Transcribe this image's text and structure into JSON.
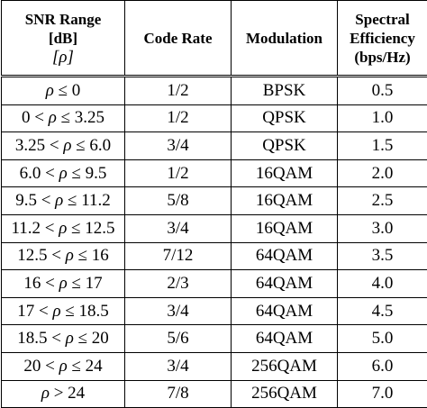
{
  "headers": {
    "snr": [
      "SNR Range",
      "[dB]",
      "[ρ]"
    ],
    "code_rate": "Code Rate",
    "modulation": "Modulation",
    "efficiency": [
      "Spectral",
      "Efficiency",
      "(bps/Hz)"
    ]
  },
  "rows": [
    {
      "snr": "ρ ≤ 0",
      "code_rate": "1/2",
      "modulation": "BPSK",
      "efficiency": "0.5"
    },
    {
      "snr": "0 < ρ ≤ 3.25",
      "code_rate": "1/2",
      "modulation": "QPSK",
      "efficiency": "1.0"
    },
    {
      "snr": "3.25 < ρ ≤ 6.0",
      "code_rate": "3/4",
      "modulation": "QPSK",
      "efficiency": "1.5"
    },
    {
      "snr": "6.0 < ρ ≤ 9.5",
      "code_rate": "1/2",
      "modulation": "16QAM",
      "efficiency": "2.0"
    },
    {
      "snr": "9.5 < ρ ≤ 11.2",
      "code_rate": "5/8",
      "modulation": "16QAM",
      "efficiency": "2.5"
    },
    {
      "snr": "11.2 < ρ ≤ 12.5",
      "code_rate": "3/4",
      "modulation": "16QAM",
      "efficiency": "3.0"
    },
    {
      "snr": "12.5 < ρ ≤ 16",
      "code_rate": "7/12",
      "modulation": "64QAM",
      "efficiency": "3.5"
    },
    {
      "snr": "16 < ρ ≤ 17",
      "code_rate": "2/3",
      "modulation": "64QAM",
      "efficiency": "4.0"
    },
    {
      "snr": "17 < ρ ≤ 18.5",
      "code_rate": "3/4",
      "modulation": "64QAM",
      "efficiency": "4.5"
    },
    {
      "snr": "18.5 < ρ ≤ 20",
      "code_rate": "5/6",
      "modulation": "64QAM",
      "efficiency": "5.0"
    },
    {
      "snr": "20 < ρ ≤ 24",
      "code_rate": "3/4",
      "modulation": "256QAM",
      "efficiency": "6.0"
    },
    {
      "snr": "ρ > 24",
      "code_rate": "7/8",
      "modulation": "256QAM",
      "efficiency": "7.0"
    }
  ]
}
